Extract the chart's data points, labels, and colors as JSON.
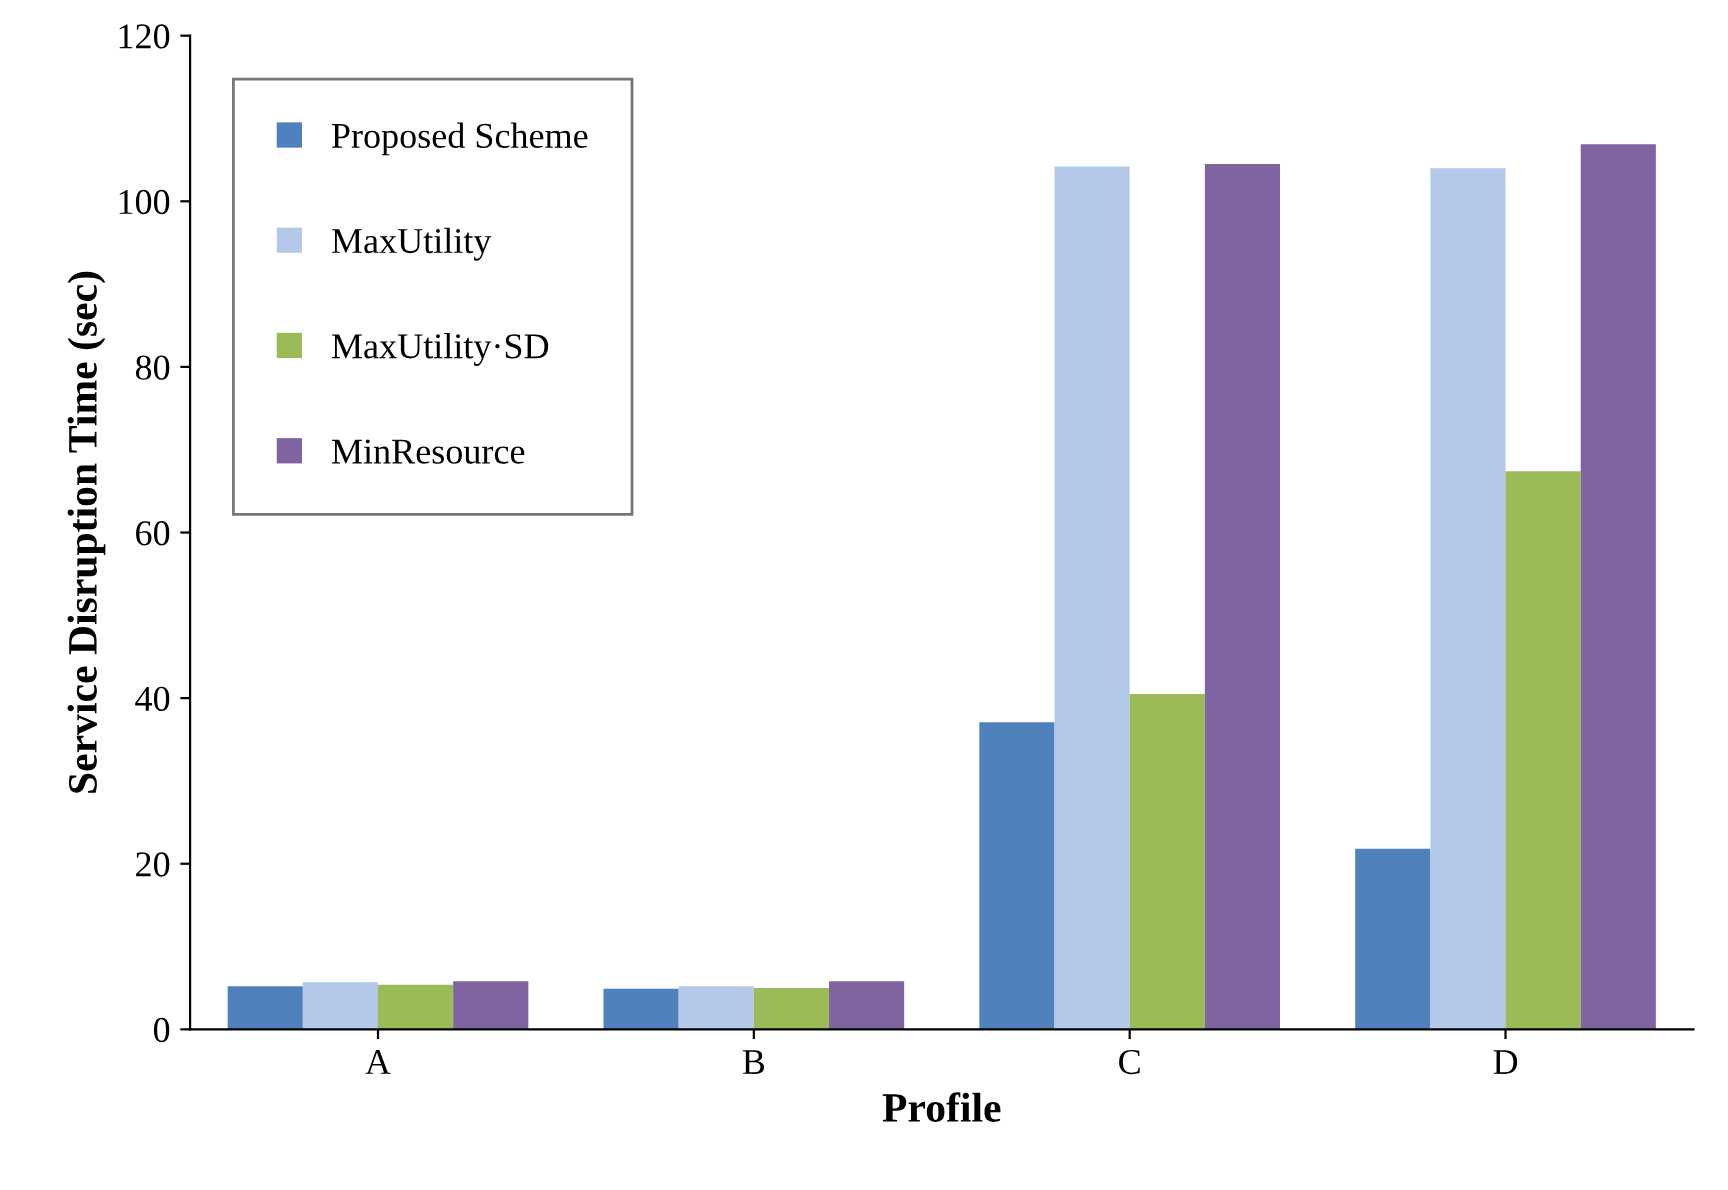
{
  "chart_data": {
    "type": "bar",
    "xlabel": "Profile",
    "ylabel": "Service Disruption Time (sec)",
    "categories": [
      "A",
      "B",
      "C",
      "D"
    ],
    "series": [
      {
        "name": "Proposed Scheme",
        "color": "#4f81bd",
        "values": [
          5.2,
          4.9,
          37.1,
          21.8
        ]
      },
      {
        "name": "MaxUtility",
        "color": "#b4c9ea",
        "values": [
          5.7,
          5.2,
          104.2,
          104
        ]
      },
      {
        "name": "MaxUtility·SD",
        "color": "#9bbb59",
        "values": [
          5.4,
          5.0,
          40.5,
          67.4
        ]
      },
      {
        "name": "MinResource",
        "color": "#8064a2",
        "values": [
          5.8,
          5.8,
          104.5,
          106.9
        ]
      }
    ],
    "ylim": [
      0,
      120
    ],
    "yticks": [
      0,
      20,
      40,
      60,
      80,
      100,
      120
    ],
    "grid": false,
    "legend": "top left"
  }
}
